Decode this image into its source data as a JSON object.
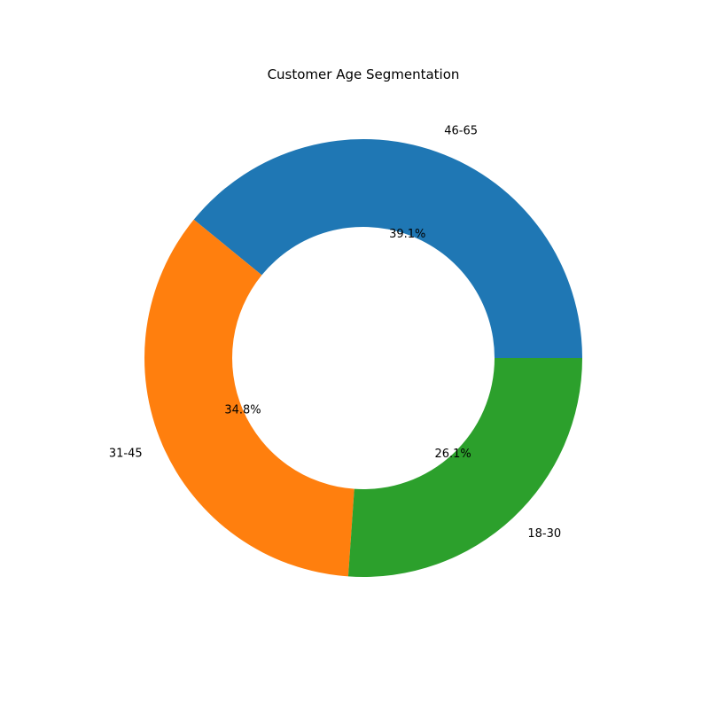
{
  "chart_data": {
    "type": "pie",
    "variant": "donut",
    "title": "Customer Age Segmentation",
    "slices": [
      {
        "label": "46-65",
        "value": 39.1,
        "pct_label": "39.1%",
        "color": "#1f77b4"
      },
      {
        "label": "31-45",
        "value": 34.8,
        "pct_label": "34.8%",
        "color": "#ff7f0e"
      },
      {
        "label": "18-30",
        "value": 26.1,
        "pct_label": "26.1%",
        "color": "#2ca02c"
      }
    ],
    "start_angle_deg": 0,
    "direction": "counterclockwise",
    "legend": "none"
  }
}
